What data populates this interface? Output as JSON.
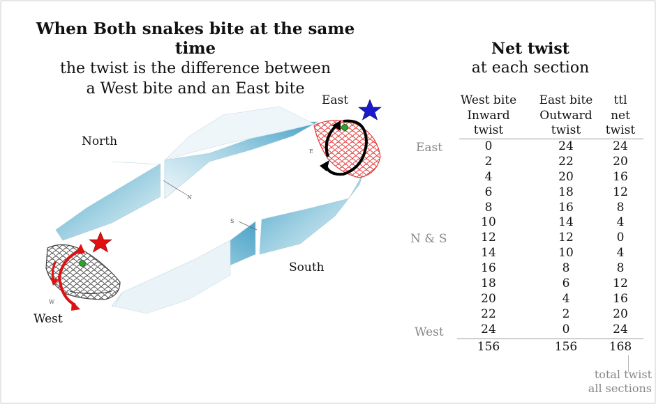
{
  "title": {
    "bold": "When Both snakes bite at the same time",
    "line1": "the twist is the difference between",
    "line2": "a West bite and an East bite"
  },
  "diagram": {
    "labels": {
      "north": "North",
      "east": "East",
      "south": "South",
      "west": "West"
    },
    "small_letters": {
      "n": "N",
      "e": "E",
      "s": "S",
      "w": "W"
    },
    "colors": {
      "ribbon": "#8fc9df",
      "east_snake": "#e23b3b",
      "west_snake": "#555555",
      "west_arrow": "#e01010",
      "east_arrow": "#000000",
      "east_star": "#1a1acc",
      "west_star": "#e01010",
      "eye": "#2aa52a"
    }
  },
  "table": {
    "title": "Net twist",
    "subtitle": "at each section",
    "headers": {
      "west": [
        "West bite",
        "Inward",
        "twist"
      ],
      "east": [
        "East bite",
        "Outward",
        "twist"
      ],
      "net": [
        "ttl",
        "net",
        "twist"
      ]
    },
    "west": [
      "0",
      "2",
      "4",
      "6",
      "8",
      "10",
      "12",
      "14",
      "16",
      "18",
      "20",
      "22",
      "24"
    ],
    "east": [
      "24",
      "22",
      "20",
      "18",
      "16",
      "14",
      "12",
      "10",
      "8",
      "6",
      "4",
      "2",
      "0"
    ],
    "net": [
      "24",
      "20",
      "16",
      "12",
      "8",
      "4",
      "0",
      "4",
      "8",
      "12",
      "16",
      "20",
      "24"
    ],
    "section_labels": {
      "east": "East",
      "ns": "N & S",
      "west": "West"
    },
    "totals": {
      "west": "156",
      "east": "156",
      "net": "168"
    },
    "note": [
      "total twist",
      "all sections"
    ]
  }
}
